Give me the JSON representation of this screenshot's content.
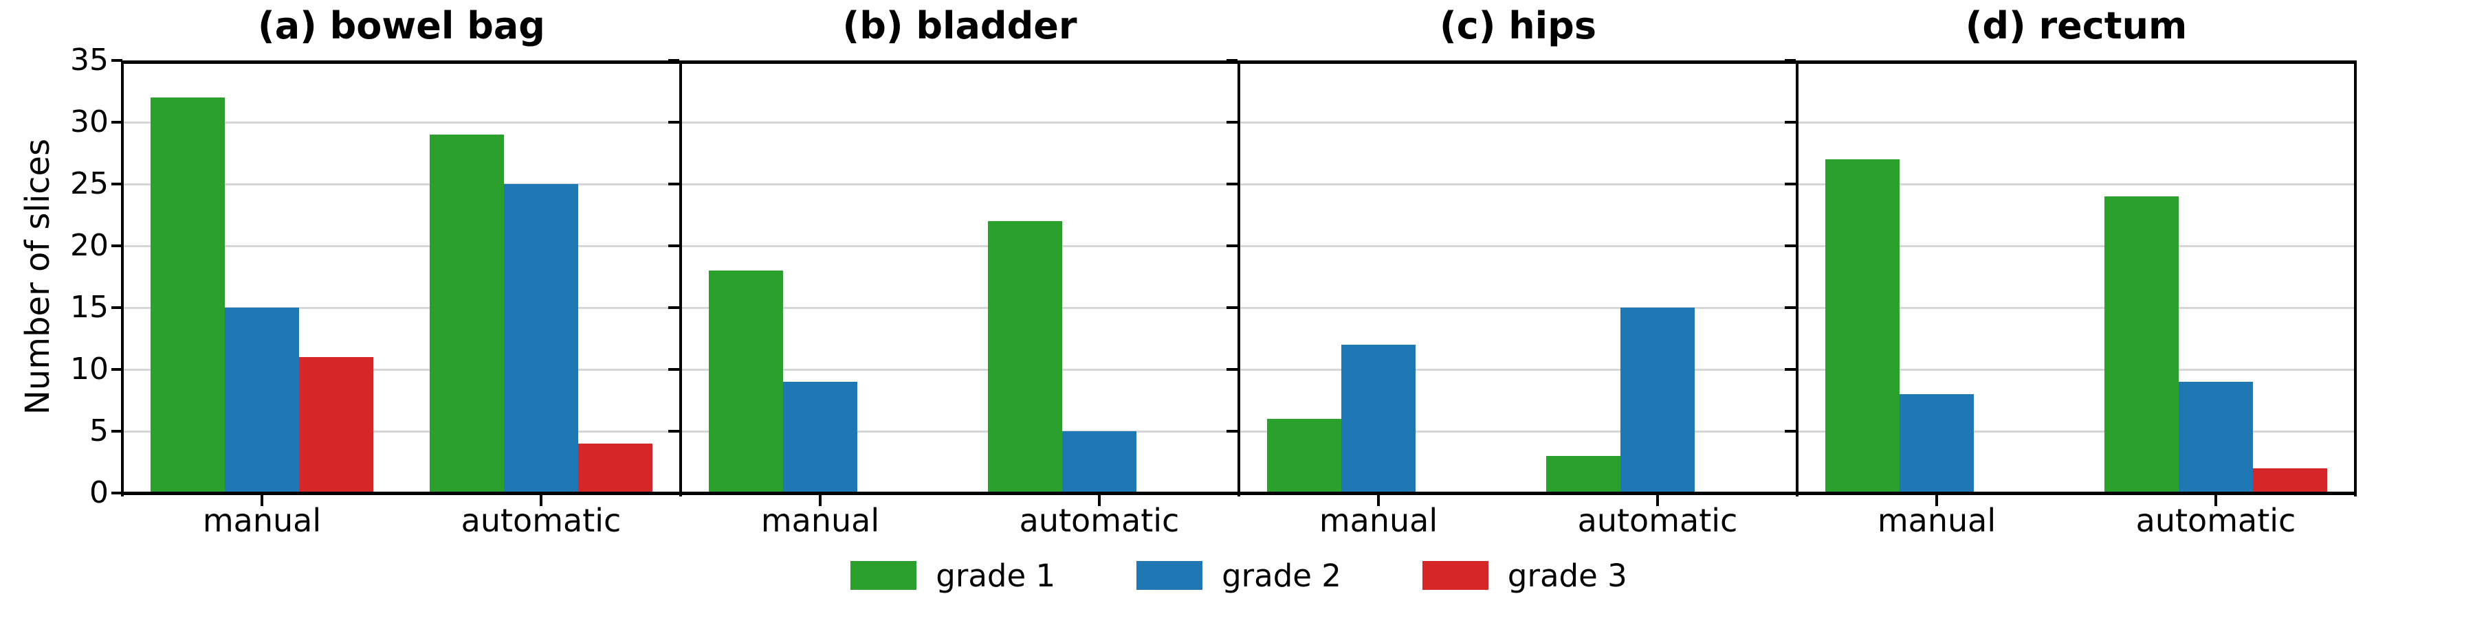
{
  "figure": {
    "ylabel": "Number of slices",
    "ylim": [
      0,
      35
    ],
    "yticks": [
      0,
      5,
      10,
      15,
      20,
      25,
      30,
      35
    ],
    "grid": true,
    "legend_position": "bottom center",
    "legend": [
      {
        "label": "grade 1",
        "color": "#2ca02c"
      },
      {
        "label": "grade 2",
        "color": "#1f77b4"
      },
      {
        "label": "grade 3",
        "color": "#d62728"
      }
    ]
  },
  "chart_data": [
    {
      "type": "bar",
      "title": "(a) bowel bag",
      "categories": [
        "manual",
        "automatic"
      ],
      "series": [
        {
          "name": "grade 1",
          "values": [
            32,
            29
          ]
        },
        {
          "name": "grade 2",
          "values": [
            15,
            25
          ]
        },
        {
          "name": "grade 3",
          "values": [
            11,
            4
          ]
        }
      ],
      "xlabel": "",
      "ylabel": "Number of slices",
      "ylim": [
        0,
        35
      ]
    },
    {
      "type": "bar",
      "title": "(b) bladder",
      "categories": [
        "manual",
        "automatic"
      ],
      "series": [
        {
          "name": "grade 1",
          "values": [
            18,
            22
          ]
        },
        {
          "name": "grade 2",
          "values": [
            9,
            5
          ]
        },
        {
          "name": "grade 3",
          "values": [
            0,
            0
          ]
        }
      ],
      "xlabel": "",
      "ylabel": "Number of slices",
      "ylim": [
        0,
        35
      ]
    },
    {
      "type": "bar",
      "title": "(c) hips",
      "categories": [
        "manual",
        "automatic"
      ],
      "series": [
        {
          "name": "grade 1",
          "values": [
            6,
            3
          ]
        },
        {
          "name": "grade 2",
          "values": [
            12,
            15
          ]
        },
        {
          "name": "grade 3",
          "values": [
            0,
            0
          ]
        }
      ],
      "xlabel": "",
      "ylabel": "Number of slices",
      "ylim": [
        0,
        35
      ]
    },
    {
      "type": "bar",
      "title": "(d) rectum",
      "categories": [
        "manual",
        "automatic"
      ],
      "series": [
        {
          "name": "grade 1",
          "values": [
            27,
            24
          ]
        },
        {
          "name": "grade 2",
          "values": [
            8,
            9
          ]
        },
        {
          "name": "grade 3",
          "values": [
            0,
            2
          ]
        }
      ],
      "xlabel": "",
      "ylabel": "Number of slices",
      "ylim": [
        0,
        35
      ]
    }
  ]
}
